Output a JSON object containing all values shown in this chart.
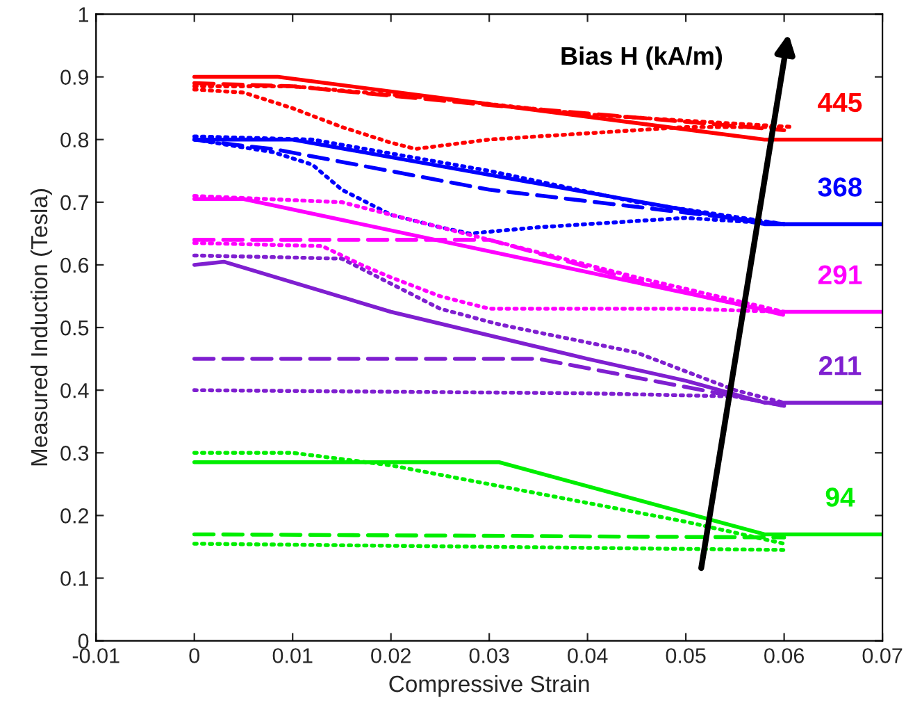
{
  "chart_data": {
    "type": "line",
    "xlabel": "Compressive Strain",
    "ylabel": "Measured Induction (Tesla)",
    "xlim": [
      -0.01,
      0.07
    ],
    "ylim": [
      0,
      1
    ],
    "xticks": [
      {
        "value": -0.01,
        "label": "-0.01"
      },
      {
        "value": 0,
        "label": "0"
      },
      {
        "value": 0.01,
        "label": "0.01"
      },
      {
        "value": 0.02,
        "label": "0.02"
      },
      {
        "value": 0.03,
        "label": "0.03"
      },
      {
        "value": 0.04,
        "label": "0.04"
      },
      {
        "value": 0.05,
        "label": "0.05"
      },
      {
        "value": 0.06,
        "label": "0.06"
      },
      {
        "value": 0.07,
        "label": "0.07"
      }
    ],
    "yticks": [
      {
        "value": 0,
        "label": "0"
      },
      {
        "value": 0.1,
        "label": "0.1"
      },
      {
        "value": 0.2,
        "label": "0.2"
      },
      {
        "value": 0.3,
        "label": "0.3"
      },
      {
        "value": 0.4,
        "label": "0.4"
      },
      {
        "value": 0.5,
        "label": "0.5"
      },
      {
        "value": 0.6,
        "label": "0.6"
      },
      {
        "value": 0.7,
        "label": "0.7"
      },
      {
        "value": 0.8,
        "label": "0.8"
      },
      {
        "value": 0.9,
        "label": "0.9"
      },
      {
        "value": 1,
        "label": "1"
      }
    ],
    "grid": false,
    "legend": false,
    "marker": "none",
    "series": [
      {
        "name": "445",
        "color": "#ff0000",
        "line_style": "solid",
        "x": [
          0,
          0.0085,
          0.058,
          0.07
        ],
        "values": [
          0.9,
          0.9,
          0.8,
          0.8
        ]
      },
      {
        "color": "#ff0000",
        "line_style": "dashed",
        "x": [
          0,
          0.01,
          0.03,
          0.06
        ],
        "values": [
          0.89,
          0.885,
          0.855,
          0.815
        ]
      },
      {
        "color": "#ff0000",
        "line_style": "dotted",
        "x": [
          0,
          0.01,
          0.025,
          0.04,
          0.05,
          0.061
        ],
        "values": [
          0.885,
          0.885,
          0.865,
          0.84,
          0.83,
          0.82
        ]
      },
      {
        "color": "#ff0000",
        "line_style": "dotted",
        "x": [
          0,
          0.005,
          0.01,
          0.015,
          0.02,
          0.0225,
          0.025,
          0.03,
          0.04,
          0.05,
          0.06
        ],
        "values": [
          0.88,
          0.875,
          0.85,
          0.82,
          0.795,
          0.785,
          0.79,
          0.8,
          0.81,
          0.82,
          0.82
        ]
      },
      {
        "name": "368",
        "color": "#0000ff",
        "line_style": "solid",
        "x": [
          0,
          0.01,
          0.058,
          0.07
        ],
        "values": [
          0.8,
          0.8,
          0.665,
          0.665
        ]
      },
      {
        "color": "#0000ff",
        "line_style": "dashed",
        "x": [
          0,
          0.005,
          0.008,
          0.03,
          0.06
        ],
        "values": [
          0.8,
          0.79,
          0.785,
          0.72,
          0.665
        ]
      },
      {
        "color": "#0000ff",
        "line_style": "dotted",
        "x": [
          0,
          0.012,
          0.03,
          0.045,
          0.06
        ],
        "values": [
          0.805,
          0.8,
          0.75,
          0.7,
          0.665
        ]
      },
      {
        "color": "#0000ff",
        "line_style": "dotted",
        "x": [
          0,
          0.008,
          0.012,
          0.015,
          0.02,
          0.025,
          0.028,
          0.035,
          0.04,
          0.05,
          0.055,
          0.06
        ],
        "values": [
          0.8,
          0.78,
          0.76,
          0.72,
          0.68,
          0.66,
          0.65,
          0.66,
          0.665,
          0.675,
          0.67,
          0.665
        ]
      },
      {
        "name": "291",
        "color": "#ff00ff",
        "line_style": "solid",
        "x": [
          0,
          0.005,
          0.059,
          0.07
        ],
        "values": [
          0.705,
          0.705,
          0.525,
          0.525
        ]
      },
      {
        "color": "#ff00ff",
        "line_style": "dashed",
        "x": [
          0,
          0.03,
          0.045,
          0.06
        ],
        "values": [
          0.64,
          0.64,
          0.575,
          0.52
        ]
      },
      {
        "color": "#ff00ff",
        "line_style": "dotted",
        "x": [
          0,
          0.015,
          0.03,
          0.045,
          0.06
        ],
        "values": [
          0.71,
          0.7,
          0.64,
          0.58,
          0.525
        ]
      },
      {
        "color": "#ff00ff",
        "line_style": "dotted",
        "x": [
          0,
          0.013,
          0.017,
          0.02,
          0.025,
          0.03,
          0.04,
          0.05,
          0.06
        ],
        "values": [
          0.635,
          0.63,
          0.6,
          0.58,
          0.55,
          0.53,
          0.53,
          0.53,
          0.525
        ]
      },
      {
        "name": "211",
        "color": "#7f1fd0",
        "line_style": "solid",
        "x": [
          0,
          0.003,
          0.02,
          0.04,
          0.05,
          0.058,
          0.07
        ],
        "values": [
          0.6,
          0.605,
          0.525,
          0.45,
          0.415,
          0.38,
          0.38
        ]
      },
      {
        "color": "#7f1fd0",
        "line_style": "dashed",
        "x": [
          0,
          0.035,
          0.06
        ],
        "values": [
          0.45,
          0.45,
          0.375
        ]
      },
      {
        "color": "#7f1fd0",
        "line_style": "dotted",
        "x": [
          0,
          0.04,
          0.055,
          0.06
        ],
        "values": [
          0.4,
          0.395,
          0.39,
          0.375
        ]
      },
      {
        "color": "#7f1fd0",
        "line_style": "dotted",
        "x": [
          0,
          0.015,
          0.02,
          0.025,
          0.031,
          0.045,
          0.055,
          0.06
        ],
        "values": [
          0.615,
          0.61,
          0.57,
          0.53,
          0.505,
          0.46,
          0.4,
          0.38
        ]
      },
      {
        "name": "94",
        "color": "#00ee00",
        "line_style": "solid",
        "x": [
          0,
          0.031,
          0.058,
          0.07
        ],
        "values": [
          0.285,
          0.285,
          0.17,
          0.17
        ]
      },
      {
        "color": "#00ee00",
        "line_style": "dashed",
        "x": [
          0,
          0.06
        ],
        "values": [
          0.17,
          0.165
        ]
      },
      {
        "color": "#00ee00",
        "line_style": "dotted",
        "x": [
          0,
          0.01,
          0.02,
          0.03,
          0.04,
          0.05,
          0.06
        ],
        "values": [
          0.3,
          0.3,
          0.28,
          0.25,
          0.22,
          0.19,
          0.155
        ]
      },
      {
        "color": "#00ee00",
        "line_style": "dotted",
        "x": [
          0,
          0.06
        ],
        "values": [
          0.155,
          0.145
        ]
      }
    ],
    "annotations": [
      "Bias H (kA/m)"
    ]
  }
}
